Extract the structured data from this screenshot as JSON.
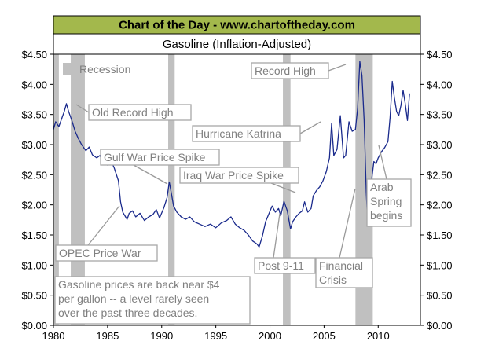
{
  "header": {
    "banner": "Chart of the Day - www.chartoftheday.com",
    "subtitle": "Gasoline (Inflation-Adjusted)"
  },
  "colors": {
    "banner_bg": "#a3b84c",
    "line": "#1a2a8c",
    "recession": "#c0c0c0",
    "annotation_text": "#808080",
    "frame": "#000000"
  },
  "chart_data": {
    "type": "line",
    "title": "Gasoline (Inflation-Adjusted)",
    "xlabel": "",
    "ylabel": "",
    "xlim": [
      1980,
      2013.9
    ],
    "ylim": [
      0,
      4.5
    ],
    "y_ticks": [
      0,
      0.5,
      1.0,
      1.5,
      2.0,
      2.5,
      3.0,
      3.5,
      4.0,
      4.5
    ],
    "y_tick_labels": [
      "$0.00",
      "$0.50",
      "$1.00",
      "$1.50",
      "$2.00",
      "$2.50",
      "$3.00",
      "$3.50",
      "$4.00",
      "$4.50"
    ],
    "x_ticks": [
      1980,
      1985,
      1990,
      1995,
      2000,
      2005,
      2010
    ],
    "x_tick_labels": [
      "1980",
      "1985",
      "1990",
      "1995",
      "2000",
      "2005",
      "2010"
    ],
    "legend": [
      {
        "label": "Recession",
        "kind": "swatch",
        "color": "#c0c0c0"
      }
    ],
    "recessions": [
      [
        1980.0,
        1980.5
      ],
      [
        1981.6,
        1982.9
      ],
      [
        1990.6,
        1991.2
      ],
      [
        2001.2,
        2001.9
      ],
      [
        2007.9,
        2009.5
      ]
    ],
    "series": [
      {
        "name": "Gasoline (Inflation-Adjusted)",
        "x": [
          1980.0,
          1980.2,
          1980.5,
          1980.8,
          1981.0,
          1981.2,
          1981.4,
          1981.7,
          1982.0,
          1982.3,
          1982.6,
          1983.0,
          1983.3,
          1983.6,
          1984.0,
          1984.3,
          1984.6,
          1985.0,
          1985.3,
          1985.6,
          1986.0,
          1986.2,
          1986.4,
          1986.6,
          1986.8,
          1987.0,
          1987.3,
          1987.6,
          1988.0,
          1988.4,
          1988.8,
          1989.2,
          1989.5,
          1989.8,
          1990.2,
          1990.5,
          1990.7,
          1990.9,
          1991.1,
          1991.4,
          1991.8,
          1992.2,
          1992.6,
          1993.0,
          1993.5,
          1994.0,
          1994.5,
          1995.0,
          1995.5,
          1996.0,
          1996.4,
          1996.8,
          1997.2,
          1997.6,
          1998.0,
          1998.4,
          1998.8,
          1999.0,
          1999.3,
          1999.6,
          1999.9,
          2000.2,
          2000.5,
          2000.8,
          2001.0,
          2001.3,
          2001.6,
          2001.9,
          2002.1,
          2002.4,
          2002.7,
          2003.0,
          2003.2,
          2003.5,
          2003.8,
          2004.0,
          2004.3,
          2004.6,
          2004.9,
          2005.2,
          2005.5,
          2005.7,
          2005.9,
          2006.2,
          2006.5,
          2006.8,
          2007.0,
          2007.3,
          2007.6,
          2007.9,
          2008.1,
          2008.3,
          2008.5,
          2008.7,
          2008.9,
          2009.0,
          2009.2,
          2009.4,
          2009.6,
          2009.8,
          2010.0,
          2010.3,
          2010.6,
          2010.9,
          2011.1,
          2011.3,
          2011.5,
          2011.7,
          2011.9,
          2012.1,
          2012.3,
          2012.5,
          2012.7,
          2012.9
        ],
        "y": [
          3.25,
          3.38,
          3.3,
          3.45,
          3.55,
          3.68,
          3.55,
          3.4,
          3.22,
          3.1,
          3.0,
          2.9,
          2.96,
          2.83,
          2.78,
          2.82,
          2.7,
          2.66,
          2.74,
          2.62,
          2.4,
          2.05,
          1.88,
          1.82,
          1.76,
          1.86,
          1.9,
          1.8,
          1.86,
          1.74,
          1.8,
          1.84,
          1.92,
          1.78,
          1.95,
          2.12,
          2.38,
          2.18,
          1.98,
          1.88,
          1.8,
          1.76,
          1.8,
          1.72,
          1.68,
          1.64,
          1.68,
          1.62,
          1.7,
          1.74,
          1.8,
          1.68,
          1.62,
          1.58,
          1.5,
          1.4,
          1.35,
          1.3,
          1.48,
          1.72,
          1.85,
          1.98,
          1.88,
          1.94,
          1.82,
          2.06,
          1.9,
          1.6,
          1.72,
          1.8,
          1.86,
          1.9,
          2.05,
          1.88,
          1.94,
          2.15,
          2.24,
          2.3,
          2.4,
          2.55,
          2.78,
          3.35,
          2.82,
          2.92,
          3.48,
          2.78,
          2.82,
          3.38,
          3.22,
          3.25,
          3.6,
          4.38,
          4.15,
          3.4,
          2.2,
          1.82,
          2.05,
          2.42,
          2.72,
          2.68,
          2.78,
          2.88,
          2.95,
          3.05,
          3.45,
          4.05,
          3.78,
          3.55,
          3.48,
          3.65,
          3.9,
          3.68,
          3.4,
          3.85
        ]
      }
    ],
    "annotations": [
      {
        "id": "old-record-high",
        "text": [
          "Old Record High"
        ]
      },
      {
        "id": "gulf-war",
        "text": [
          "Gulf War Price Spike"
        ]
      },
      {
        "id": "iraq-war",
        "text": [
          "Iraq War Price Spike"
        ]
      },
      {
        "id": "opec",
        "text": [
          "OPEC Price War"
        ]
      },
      {
        "id": "record-high",
        "text": [
          "Record High"
        ]
      },
      {
        "id": "katrina",
        "text": [
          "Hurricane Katrina"
        ]
      },
      {
        "id": "post-911",
        "text": [
          "Post 9-11"
        ]
      },
      {
        "id": "financial",
        "text": [
          "Financial",
          "Crisis"
        ]
      },
      {
        "id": "arab-spring",
        "text": [
          "Arab",
          "Spring",
          "begins"
        ]
      },
      {
        "id": "note",
        "text": [
          "Gasoline prices are back near $4",
          "per gallon -- a level rarely seen",
          "over the past three decades."
        ]
      }
    ]
  }
}
